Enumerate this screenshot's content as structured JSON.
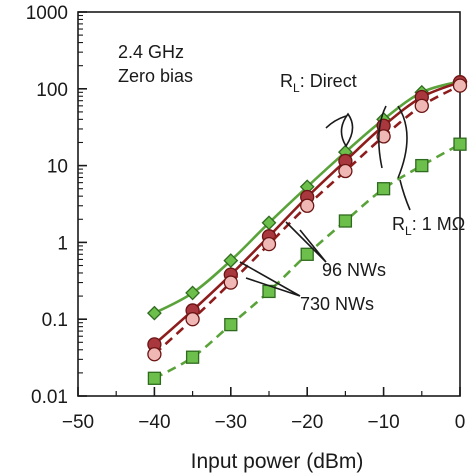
{
  "chart_data": {
    "type": "line",
    "xlabel": "Input power (dBm)",
    "ylabel": "",
    "xlim": [
      -50,
      0
    ],
    "ylim": [
      0.01,
      1000
    ],
    "yscale": "log",
    "x_ticks": [
      -50,
      -40,
      -30,
      -20,
      -10,
      0
    ],
    "x_tick_labels": [
      "−50",
      "−40",
      "−30",
      "−20",
      "−10",
      "0"
    ],
    "y_ticks": [
      0.01,
      0.1,
      1,
      10,
      100,
      1000
    ],
    "y_tick_labels": [
      "0.01",
      "0.1",
      "1",
      "10",
      "100",
      "1000"
    ],
    "grid": false,
    "legend": "none",
    "annotations": {
      "condition_line1": "2.4 GHz",
      "condition_line2": "Zero bias",
      "rl_direct_prefix": "R",
      "rl_direct_sub": "L",
      "rl_direct_suffix": ": Direct",
      "rl_1m_prefix": "R",
      "rl_1m_sub": "L",
      "rl_1m_suffix": ": 1 MΩ",
      "nw96": "96 NWs",
      "nw730": "730 NWs"
    },
    "series": [
      {
        "key": "s96_direct",
        "marker": "diamond",
        "line": "solid",
        "color": "#5aa33a",
        "fill": "#6cbf4a",
        "x": [
          -40,
          -35,
          -30,
          -25,
          -20,
          -15,
          -10,
          -5,
          0
        ],
        "y": [
          0.12,
          0.22,
          0.58,
          1.8,
          5.3,
          15,
          40,
          90,
          125
        ]
      },
      {
        "key": "s730_direct",
        "marker": "circle",
        "line": "solid",
        "color": "#8e1c1c",
        "fill": "#a8383d",
        "x": [
          -40,
          -35,
          -30,
          -25,
          -20,
          -15,
          -10,
          -5,
          0
        ],
        "y": [
          0.047,
          0.13,
          0.38,
          1.2,
          3.9,
          11.5,
          33,
          78,
          122
        ]
      },
      {
        "key": "s730_1m",
        "marker": "circle",
        "line": "dashed",
        "color": "#8e1c1c",
        "fill": "#f0b8b4",
        "x": [
          -40,
          -35,
          -30,
          -25,
          -20,
          -15,
          -10,
          -5,
          0
        ],
        "y": [
          0.035,
          0.1,
          0.3,
          0.95,
          3.0,
          8.5,
          24,
          60,
          110
        ]
      },
      {
        "key": "s96_1m",
        "marker": "square",
        "line": "dashed",
        "color": "#5aa33a",
        "fill": "#6cbf4a",
        "x": [
          -40,
          -35,
          -30,
          -25,
          -20,
          -15,
          -10,
          -5,
          0
        ],
        "y": [
          0.017,
          0.032,
          0.085,
          0.23,
          0.7,
          1.9,
          5,
          10,
          19
        ]
      }
    ]
  }
}
